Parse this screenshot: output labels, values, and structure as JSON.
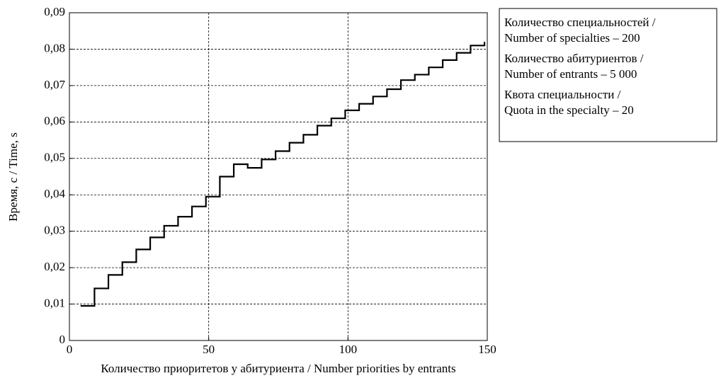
{
  "chart_data": {
    "type": "step",
    "x_label": "Количество приоритетов у абитуриента / Number priorities by entrants",
    "y_label": "Время, с / Time, s",
    "x": [
      4,
      9,
      14,
      19,
      24,
      29,
      34,
      39,
      44,
      49,
      54,
      59,
      64,
      69,
      74,
      79,
      84,
      89,
      94,
      99,
      104,
      109,
      114,
      119,
      124,
      129,
      134,
      139,
      144,
      149
    ],
    "series": [
      {
        "name": "Time",
        "color": "#000000",
        "values": [
          0.0095,
          0.0143,
          0.018,
          0.0215,
          0.025,
          0.0283,
          0.0315,
          0.034,
          0.0368,
          0.0395,
          0.045,
          0.0484,
          0.0474,
          0.0497,
          0.052,
          0.0543,
          0.0565,
          0.059,
          0.061,
          0.0632,
          0.065,
          0.067,
          0.069,
          0.0715,
          0.073,
          0.075,
          0.077,
          0.079,
          0.081,
          0.082
        ]
      }
    ],
    "xlim": [
      0,
      150
    ],
    "xticks": [
      0,
      50,
      100,
      150
    ],
    "ylim": [
      0,
      0.09
    ],
    "yticks": [
      0,
      {
        "value": 0.01,
        "label": "0,01"
      },
      {
        "value": 0.02,
        "label": "0,02"
      },
      {
        "value": 0.03,
        "label": "0,03"
      },
      {
        "value": 0.04,
        "label": "0,04"
      },
      {
        "value": 0.05,
        "label": "0,05"
      },
      {
        "value": 0.06,
        "label": "0,06"
      },
      {
        "value": 0.07,
        "label": "0,07"
      },
      {
        "value": 0.08,
        "label": "0,08"
      },
      {
        "value": 0.09,
        "label": "0,09"
      }
    ],
    "grid": true,
    "legend_box": [
      [
        "Количество специальностей /",
        "Number of specialties – 200"
      ],
      [
        "Количество абитуриентов /",
        "Number of entrants – 5 000"
      ],
      [
        "Квота специальности /",
        "Quota in the specialty – 20"
      ]
    ]
  }
}
